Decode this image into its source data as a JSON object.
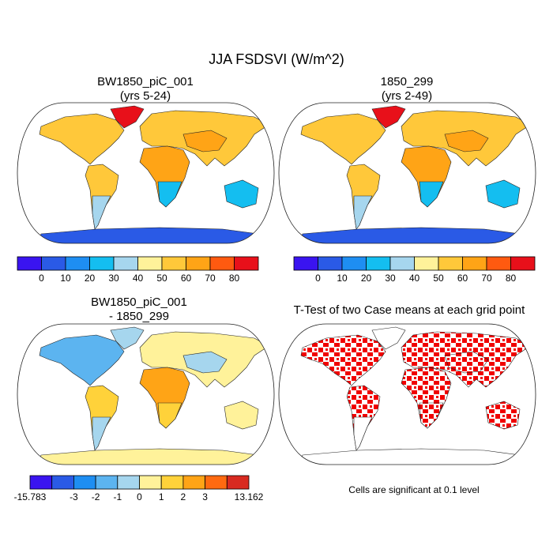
{
  "title": "JJA FSDSVI (W/m^2)",
  "panels": [
    {
      "title": "BW1850_piC_001",
      "subtitle": "(yrs 5-24)"
    },
    {
      "title": "1850_299",
      "subtitle": "(yrs 2-49)"
    },
    {
      "title": "BW1850_piC_001",
      "subtitle": "- 1850_299"
    },
    {
      "title": "T-Test of two Case means at each grid point"
    }
  ],
  "colorbars": [
    {
      "colors": [
        "#3a14f0",
        "#2a5ae6",
        "#1e8ef2",
        "#14bef0",
        "#a6d6ee",
        "#fff29a",
        "#ffc83a",
        "#ffa416",
        "#ff5a10",
        "#e8101a"
      ],
      "labels": [
        0,
        10,
        20,
        30,
        40,
        50,
        60,
        70,
        80
      ]
    },
    {
      "colors": [
        "#3a14f0",
        "#2a5ae6",
        "#1e8ef2",
        "#14bef0",
        "#a6d6ee",
        "#fff29a",
        "#ffc83a",
        "#ffa416",
        "#ff5a10",
        "#e8101a"
      ],
      "labels": [
        0,
        10,
        20,
        30,
        40,
        50,
        60,
        70,
        80
      ]
    },
    {
      "colors": [
        "#3a14f0",
        "#2a5ae6",
        "#1e8ef2",
        "#5cb4f0",
        "#a6d6ee",
        "#fff29a",
        "#ffd23a",
        "#ffa416",
        "#ff6a10",
        "#d82a20"
      ],
      "labels": [
        -15.783,
        -3,
        -2,
        -1,
        0,
        1,
        2,
        3,
        13.162
      ]
    }
  ],
  "note": "Cells are significant at 0.1 level"
}
